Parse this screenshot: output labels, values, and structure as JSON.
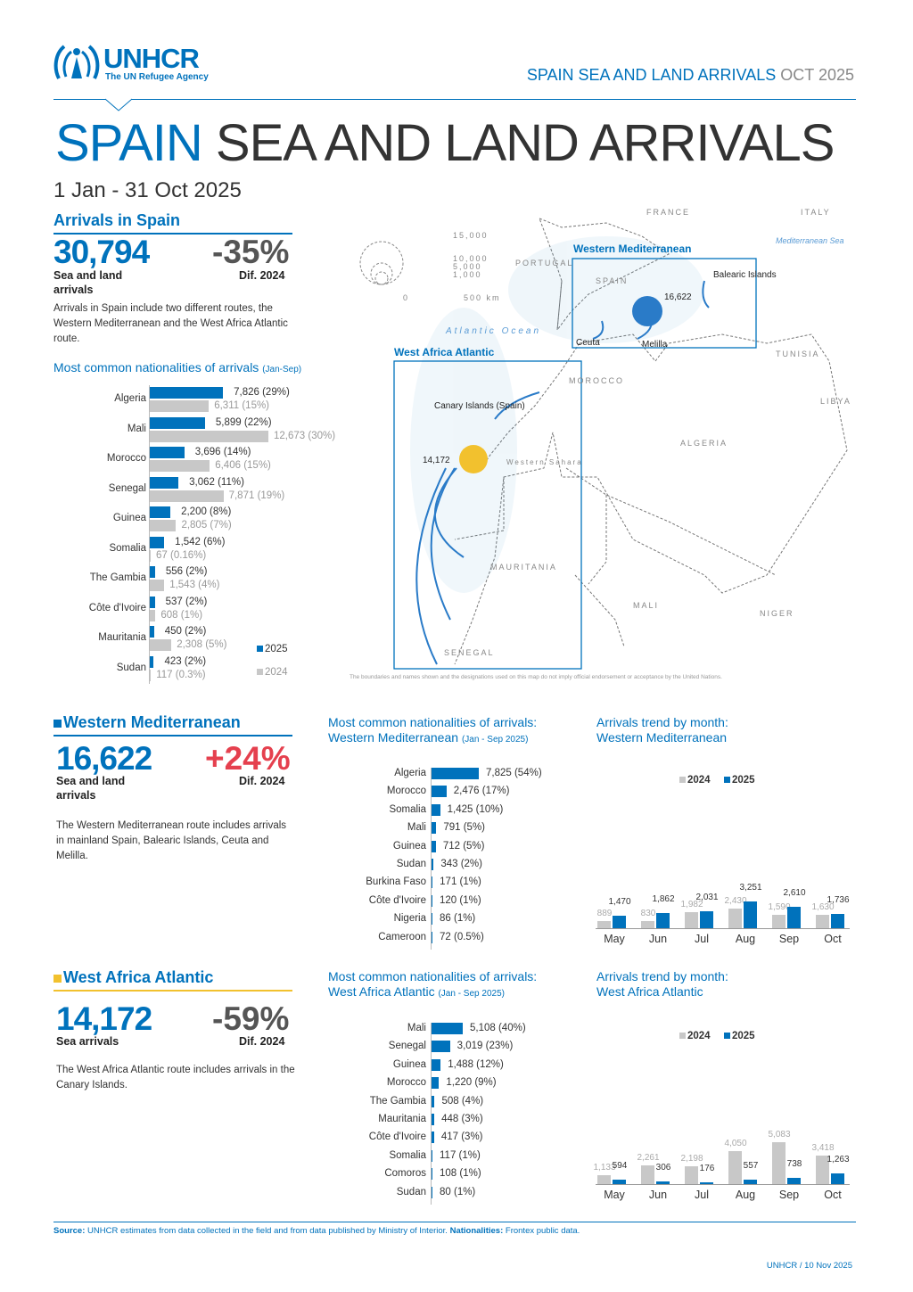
{
  "header": {
    "logo_name": "UNHCR",
    "logo_sub": "The UN Refugee Agency",
    "right_main": "SPAIN SEA AND LAND ARRIVALS",
    "right_date": "OCT 2025"
  },
  "title": {
    "country": "SPAIN",
    "rest": "SEA AND LAND ARRIVALS",
    "period": "1 Jan - 31 Oct 2025"
  },
  "colors": {
    "brand": "#0072BC",
    "y2024": "#C8C8C8",
    "increase": "#E5404E",
    "west_africa": "#F2C12E"
  },
  "spain": {
    "heading": "Arrivals in Spain",
    "total": "30,794",
    "total_label": "Sea and land arrivals",
    "dif": "-35%",
    "dif_label": "Dif. 2024",
    "desc": "Arrivals in Spain include two different routes, the Western Mediterranean and the West Africa Atlantic route."
  },
  "wm": {
    "heading": "Western Mediterranean",
    "total": "16,622",
    "total_label": "Sea and land arrivals",
    "dif": "+24%",
    "dif_label": "Dif. 2024",
    "desc": "The Western Mediterranean route includes arrivals in mainland Spain, Balearic Islands, Ceuta and Melilla."
  },
  "waa": {
    "heading": "West Africa Atlantic",
    "total": "14,172",
    "total_label": "Sea arrivals",
    "dif": "-59%",
    "dif_label": "Dif. 2024",
    "desc": "The West Africa Atlantic route includes arrivals in the Canary Islands."
  },
  "map": {
    "legend_values": [
      "15,000",
      "10,000",
      "5,000",
      "1,000"
    ],
    "scale": [
      "0",
      "500 km"
    ],
    "wm_box": "Western Mediterranean",
    "waa_box": "West Africa Atlantic",
    "wm_value": "16,622",
    "waa_value": "14,172",
    "places": {
      "spain": "SPAIN",
      "portugal": "PORTUGAL",
      "france": "FRANCE",
      "italy": "ITALY",
      "med": "Mediterranean Sea",
      "atlantic": "Atlantic Ocean",
      "morocco": "MOROCCO",
      "algeria": "ALGERIA",
      "libya": "LIBYA",
      "tunisia": "TUNISIA",
      "ws": "Western Sahara",
      "mauritania": "MAURITANIA",
      "mali": "MALI",
      "niger": "NIGER",
      "senegal": "SENEGAL",
      "canary": "Canary Islands (Spain)",
      "balearic": "Balearic Islands",
      "ceuta": "Ceuta",
      "melilla": "Melilla"
    },
    "disclaimer": "The boundaries and names shown and the designations used on this map do not imply official endorsement or acceptance by the United Nations."
  },
  "chart_data": [
    {
      "type": "bar",
      "orientation": "horizontal",
      "title": "Most common nationalities of arrivals",
      "period": "(Jan-Sep)",
      "categories": [
        "Algeria",
        "Mali",
        "Morocco",
        "Senegal",
        "Guinea",
        "Somalia",
        "The Gambia",
        "Côte d'Ivoire",
        "Mauritania",
        "Sudan"
      ],
      "series": [
        {
          "name": "2025",
          "values": [
            7826,
            5899,
            3696,
            3062,
            2200,
            1542,
            556,
            537,
            450,
            423
          ],
          "shares": [
            "29%",
            "22%",
            "14%",
            "11%",
            "8%",
            "6%",
            "2%",
            "2%",
            "2%",
            "2%"
          ]
        },
        {
          "name": "2024",
          "values": [
            6311,
            12673,
            6406,
            7871,
            2805,
            67,
            1543,
            608,
            2308,
            117
          ],
          "shares": [
            "15%",
            "30%",
            "15%",
            "19%",
            "7%",
            "0.16%",
            "4%",
            "1%",
            "5%",
            "0.3%"
          ]
        }
      ],
      "legend": "bottom-right"
    },
    {
      "type": "bar",
      "orientation": "horizontal",
      "title": "Most common nationalities of arrivals:",
      "subtitle": "Western Mediterranean",
      "period": "(Jan - Sep 2025)",
      "categories": [
        "Algeria",
        "Morocco",
        "Somalia",
        "Mali",
        "Guinea",
        "Sudan",
        "Burkina Faso",
        "Côte d'Ivoire",
        "Nigeria",
        "Cameroon"
      ],
      "series": [
        {
          "values": [
            7825,
            2476,
            1425,
            791,
            712,
            343,
            171,
            120,
            86,
            72
          ],
          "shares": [
            "54%",
            "17%",
            "10%",
            "5%",
            "5%",
            "2%",
            "1%",
            "1%",
            "1%",
            "0.5%"
          ]
        }
      ]
    },
    {
      "type": "bar",
      "title": "Arrivals trend by month:",
      "subtitle": "Western Mediterranean",
      "categories": [
        "May",
        "Jun",
        "Jul",
        "Aug",
        "Sep",
        "Oct"
      ],
      "series": [
        {
          "name": "2024",
          "values": [
            889,
            830,
            1982,
            2430,
            1590,
            1630
          ]
        },
        {
          "name": "2025",
          "values": [
            1470,
            1862,
            2031,
            3251,
            2610,
            1736
          ]
        }
      ],
      "legend": "top"
    },
    {
      "type": "bar",
      "orientation": "horizontal",
      "title": "Most common nationalities of arrivals:",
      "subtitle": "West Africa Atlantic",
      "period": "(Jan - Sep 2025)",
      "categories": [
        "Mali",
        "Senegal",
        "Guinea",
        "Morocco",
        "The Gambia",
        "Mauritania",
        "Côte d'Ivoire",
        "Somalia",
        "Comoros",
        "Sudan"
      ],
      "series": [
        {
          "values": [
            5108,
            3019,
            1488,
            1220,
            508,
            448,
            417,
            117,
            108,
            80
          ],
          "shares": [
            "40%",
            "23%",
            "12%",
            "9%",
            "4%",
            "3%",
            "3%",
            "1%",
            "1%",
            "1%"
          ]
        }
      ]
    },
    {
      "type": "bar",
      "title": "Arrivals trend by month:",
      "subtitle": "West Africa Atlantic",
      "categories": [
        "May",
        "Jun",
        "Jul",
        "Aug",
        "Sep",
        "Oct"
      ],
      "series": [
        {
          "name": "2024",
          "values": [
            1133,
            2261,
            2198,
            4050,
            5083,
            3418
          ]
        },
        {
          "name": "2025",
          "values": [
            594,
            306,
            176,
            557,
            738,
            1263
          ]
        }
      ],
      "legend": "top"
    }
  ],
  "footer": {
    "source_label": "Source:",
    "source": "UNHCR estimates from data collected in the field and from data published by Ministry of Interior.",
    "nat_label": "Nationalities:",
    "nat": "Frontex public data.",
    "credit": "UNHCR / 10 Nov 2025"
  }
}
